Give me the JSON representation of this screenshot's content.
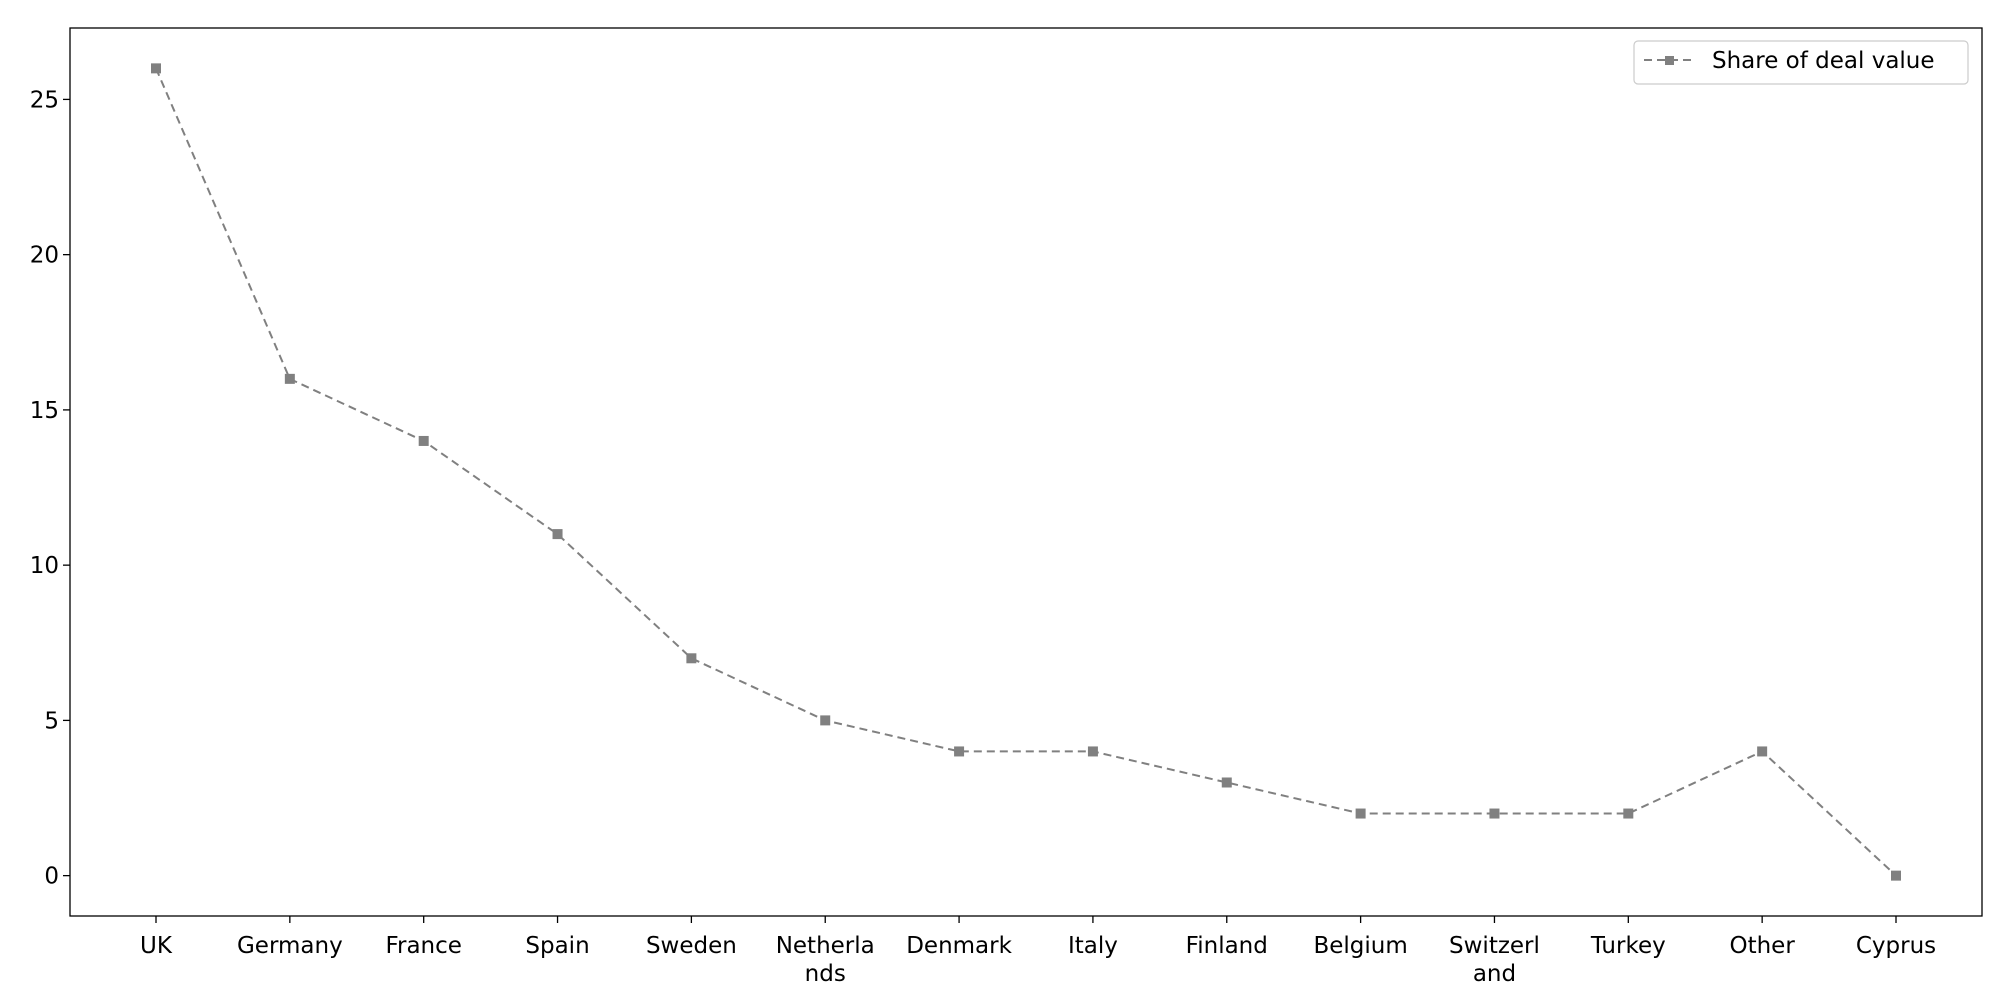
{
  "chart_data": {
    "type": "line",
    "categories": [
      "UK",
      "Germany",
      "France",
      "Spain",
      "Sweden",
      "Netherla\nnds",
      "Denmark",
      "Italy",
      "Finland",
      "Belgium",
      "Switzerl\nand",
      "Turkey",
      "Other",
      "Cyprus"
    ],
    "series": [
      {
        "name": "Share of deal value",
        "values": [
          26,
          16,
          14,
          11,
          7,
          5,
          4,
          4,
          3,
          2,
          2,
          2,
          4,
          0
        ]
      }
    ],
    "yticks": [
      0,
      5,
      10,
      15,
      20,
      25
    ],
    "ylim": [
      -1.3,
      27.3
    ],
    "title": "",
    "xlabel": "",
    "ylabel": "",
    "grid": false,
    "legend_position": "top-right",
    "line_color": "#808080",
    "line_style": "dashed",
    "marker": "square"
  }
}
